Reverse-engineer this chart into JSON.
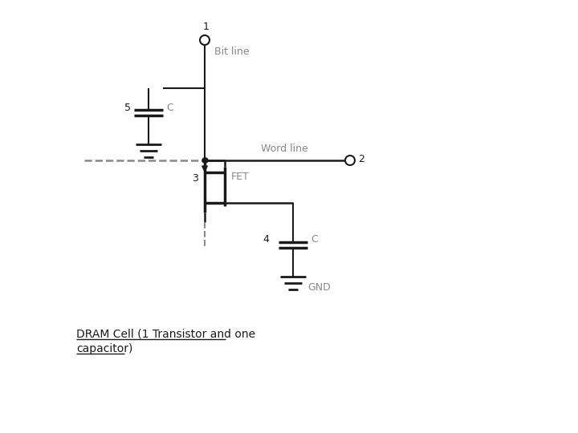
{
  "bg_color": "#ffffff",
  "line_color": "#1a1a1a",
  "gray_color": "#888888",
  "title": "DRAM Cell (1 Transistor and one\ncapacitor)",
  "title_fontsize": 10,
  "fig_width": 7.2,
  "fig_height": 5.4,
  "labels": {
    "bit_line": "Bit line",
    "word_line": "Word line",
    "FET": "FET",
    "GND": "GND",
    "C_top": "C",
    "C_bot": "C",
    "node1": "1",
    "node2": "2",
    "node3": "3",
    "node4": "4",
    "node5": "5"
  }
}
